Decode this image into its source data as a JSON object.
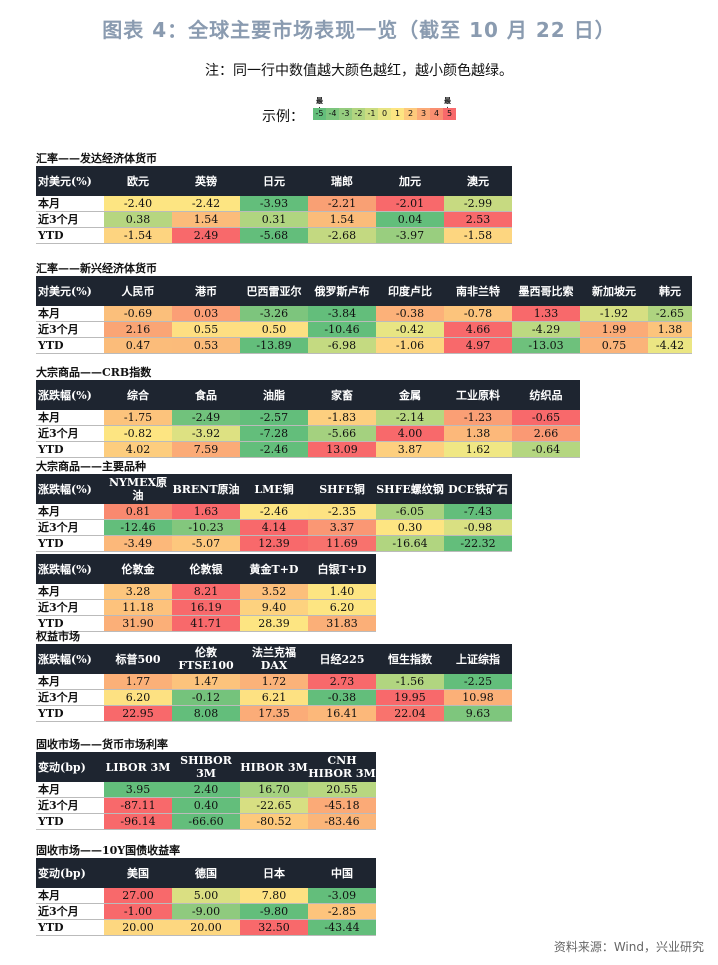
{
  "title": "图表 4：全球主要市场表现一览（截至 10 月 22 日）",
  "note": "注：同一行中数值越大颜色越红，越小颜色越绿。",
  "legend": {
    "label": "示例：",
    "min_tag": "最小",
    "max_tag": "最大",
    "scale": [
      "-5",
      "-4",
      "-3",
      "-2",
      "-1",
      "0",
      "1",
      "2",
      "3",
      "4",
      "5"
    ],
    "scale_colors": [
      "#63be7b",
      "#7cc57d",
      "#95cc7f",
      "#b1d580",
      "#cbdc81",
      "#e7e483",
      "#fde582",
      "#fdc97c",
      "#fbaa77",
      "#f98f71",
      "#f8696b"
    ]
  },
  "sections": [
    {
      "id": "fx-dm",
      "title": "汇率——发达经济体货币",
      "top": 152,
      "table_top": 166,
      "widths": [
        68,
        68,
        68,
        68,
        68,
        68,
        68
      ],
      "tables": [
        {
          "header": [
            "对美元(%)",
            "欧元",
            "英镑",
            "日元",
            "瑞郎",
            "加元",
            "澳元"
          ],
          "rows": [
            {
              "label": "本月",
              "values": [
                "-2.40",
                "-2.42",
                "-3.93",
                "-2.21",
                "-2.01",
                "-2.99"
              ],
              "colors": [
                "#fde582",
                "#fde582",
                "#63be7b",
                "#f9a074",
                "#f8696b",
                "#c7da81"
              ]
            },
            {
              "label": "近3个月",
              "values": [
                "0.38",
                "1.54",
                "0.31",
                "1.54",
                "0.04",
                "2.53"
              ],
              "colors": [
                "#b6d680",
                "#fbbc7a",
                "#b0d580",
                "#fbbc7a",
                "#63be7b",
                "#f8696b"
              ]
            },
            {
              "label": "YTD",
              "values": [
                "-1.54",
                "2.49",
                "-5.68",
                "-2.68",
                "-3.97",
                "-1.58"
              ],
              "colors": [
                "#fdd480",
                "#f8696b",
                "#63be7b",
                "#c3d981",
                "#99ce7f",
                "#fdd680"
              ]
            }
          ]
        }
      ]
    },
    {
      "id": "fx-em",
      "title": "汇率——新兴经济体货币",
      "top": 262,
      "table_top": 276,
      "widths": [
        68,
        68,
        68,
        68,
        68,
        68,
        68,
        68,
        68,
        44
      ],
      "tables": [
        {
          "header": [
            "对美元(%)",
            "人民币",
            "港币",
            "巴西雷亚尔",
            "俄罗斯卢布",
            "印度卢比",
            "南非兰特",
            "墨西哥比索",
            "新加坡元",
            "韩元"
          ],
          "rows": [
            {
              "label": "本月",
              "values": [
                "-0.69",
                "0.03",
                "-3.26",
                "-3.84",
                "-0.38",
                "-0.78",
                "1.33",
                "-1.92",
                "-2.65"
              ],
              "colors": [
                "#fbbf7b",
                "#fb9f76",
                "#7dc57d",
                "#63be7b",
                "#fcb179",
                "#fcc47c",
                "#f8696b",
                "#d6df82",
                "#aed480"
              ]
            },
            {
              "label": "近3个月",
              "values": [
                "2.16",
                "0.55",
                "0.50",
                "-10.46",
                "-0.42",
                "4.66",
                "-4.29",
                "1.99",
                "1.38"
              ],
              "colors": [
                "#faa575",
                "#fedf82",
                "#fde082",
                "#63be7b",
                "#e8e583",
                "#f8696b",
                "#bcd981",
                "#fbab77",
                "#fcc47c"
              ]
            },
            {
              "label": "YTD",
              "values": [
                "0.47",
                "0.53",
                "-13.89",
                "-6.98",
                "-1.06",
                "4.97",
                "-13.03",
                "0.75",
                "-4.42"
              ],
              "colors": [
                "#fbbc7a",
                "#fbbb7a",
                "#63be7b",
                "#c4da81",
                "#fdd580",
                "#f8696b",
                "#6ec17c",
                "#fbb379",
                "#ebe683"
              ]
            }
          ]
        }
      ]
    },
    {
      "id": "crb",
      "title": "大宗商品——CRB指数",
      "top": 366,
      "table_top": 380,
      "widths": [
        68,
        68,
        68,
        68,
        68,
        68,
        68,
        68
      ],
      "tables": [
        {
          "header": [
            "涨跌幅(%)",
            "综合",
            "食品",
            "油脂",
            "家畜",
            "金属",
            "工业原料",
            "纺织品"
          ],
          "rows": [
            {
              "label": "本月",
              "values": [
                "-1.75",
                "-2.49",
                "-2.57",
                "-1.83",
                "-2.14",
                "-1.23",
                "-0.65"
              ],
              "colors": [
                "#fcc37c",
                "#71c27c",
                "#63be7b",
                "#fdcf7f",
                "#b7d780",
                "#fa9f75",
                "#f8696b"
              ]
            },
            {
              "label": "近3个月",
              "values": [
                "-0.82",
                "-3.92",
                "-7.28",
                "-5.66",
                "4.00",
                "1.38",
                "2.66"
              ],
              "colors": [
                "#fde582",
                "#dde182",
                "#63be7b",
                "#a4d17f",
                "#f8696b",
                "#fcb87a",
                "#fa9974"
              ]
            },
            {
              "label": "YTD",
              "values": [
                "4.02",
                "7.59",
                "-2.46",
                "13.09",
                "3.87",
                "1.62",
                "-0.64"
              ],
              "colors": [
                "#fdcd7e",
                "#fbab77",
                "#63be7b",
                "#f8696b",
                "#fdcf7f",
                "#f0e784",
                "#b4d680"
              ]
            }
          ]
        }
      ]
    },
    {
      "id": "major",
      "title": "大宗商品——主要品种",
      "top": 460,
      "table_top": 474,
      "widths": [
        68,
        68,
        68,
        68,
        68,
        68,
        68
      ],
      "tables": [
        {
          "header": [
            "涨跌幅(%)",
            "NYMEX原油",
            "BRENT原油",
            "LME铜",
            "SHFE铜",
            "SHFE螺纹钢",
            "DCE铁矿石"
          ],
          "rows": [
            {
              "label": "本月",
              "values": [
                "0.81",
                "1.63",
                "-2.46",
                "-2.35",
                "-6.05",
                "-7.43"
              ],
              "colors": [
                "#f9896f",
                "#f8696b",
                "#fde582",
                "#fde382",
                "#a9d27f",
                "#63be7b"
              ]
            },
            {
              "label": "近3个月",
              "values": [
                "-12.46",
                "-10.23",
                "4.14",
                "3.37",
                "0.30",
                "-0.98"
              ],
              "colors": [
                "#63be7b",
                "#83c77d",
                "#f8696b",
                "#fa9774",
                "#fde582",
                "#d9e082"
              ]
            },
            {
              "label": "YTD",
              "values": [
                "-3.49",
                "-5.07",
                "12.39",
                "11.69",
                "-16.64",
                "-22.32"
              ],
              "colors": [
                "#fcb87a",
                "#fdc77d",
                "#f8696b",
                "#f8726d",
                "#b1d580",
                "#63be7b"
              ]
            }
          ]
        },
        {
          "header": [
            "涨跌幅(%)",
            "伦敦金",
            "伦敦银",
            "黄金T+D",
            "白银T+D"
          ],
          "rows": [
            {
              "label": "本月",
              "values": [
                "3.28",
                "8.21",
                "3.52",
                "1.40"
              ],
              "colors": [
                "#fdc67d",
                "#f8696b",
                "#fcbf7b",
                "#fde582"
              ]
            },
            {
              "label": "近3个月",
              "values": [
                "11.18",
                "16.19",
                "9.40",
                "6.20"
              ],
              "colors": [
                "#fdc27c",
                "#f8696b",
                "#fdd27f",
                "#fde582"
              ]
            },
            {
              "label": "YTD",
              "values": [
                "31.90",
                "41.71",
                "28.39",
                "31.83"
              ],
              "colors": [
                "#fbaf78",
                "#f8696b",
                "#fde582",
                "#fbaf78"
              ]
            }
          ]
        }
      ]
    },
    {
      "id": "equity",
      "title": "权益市场",
      "top": 630,
      "table_top": 644,
      "widths": [
        68,
        68,
        68,
        68,
        68,
        68,
        68
      ],
      "tables": [
        {
          "header": [
            "涨跌幅(%)",
            "标普500",
            "伦敦FTSE100",
            "法兰克福DAX",
            "日经225",
            "恒生指数",
            "上证综指"
          ],
          "rows": [
            {
              "label": "本月",
              "values": [
                "1.77",
                "1.47",
                "1.72",
                "2.73",
                "-1.56",
                "-2.25"
              ],
              "colors": [
                "#fbb078",
                "#fcc37c",
                "#fbb279",
                "#f8696b",
                "#b1d580",
                "#63be7b"
              ]
            },
            {
              "label": "近3个月",
              "values": [
                "6.20",
                "-0.12",
                "6.21",
                "-0.38",
                "19.95",
                "10.98"
              ],
              "colors": [
                "#fde182",
                "#75c37c",
                "#fde182",
                "#63be7b",
                "#f8696b",
                "#fbb078"
              ]
            },
            {
              "label": "YTD",
              "values": [
                "22.95",
                "8.08",
                "17.35",
                "16.41",
                "22.04",
                "9.63"
              ],
              "colors": [
                "#f8696b",
                "#63be7b",
                "#fbac78",
                "#fcb87a",
                "#f9736d",
                "#7ec67d"
              ]
            }
          ]
        }
      ]
    },
    {
      "id": "money",
      "title": "固收市场——货币市场利率",
      "top": 738,
      "table_top": 752,
      "widths": [
        68,
        68,
        68,
        68,
        68
      ],
      "tables": [
        {
          "header": [
            "变动(bp)",
            "LIBOR 3M",
            "SHIBOR 3M",
            "HIBOR 3M",
            "CNH HIBOR 3M"
          ],
          "rows": [
            {
              "label": "本月",
              "values": [
                "3.95",
                "2.40",
                "16.70",
                "20.55"
              ],
              "colors": [
                "#63be7b",
                "#63be7b",
                "#a5d27f",
                "#b8d780"
              ]
            },
            {
              "label": "近3个月",
              "values": [
                "-87.11",
                "0.40",
                "-22.65",
                "-45.18"
              ],
              "colors": [
                "#f8696b",
                "#63be7b",
                "#d7df82",
                "#fbaa77"
              ]
            },
            {
              "label": "YTD",
              "values": [
                "-96.14",
                "-66.60",
                "-80.52",
                "-83.46"
              ],
              "colors": [
                "#f8696b",
                "#63be7b",
                "#fdc97c",
                "#fbb579"
              ]
            }
          ]
        }
      ]
    },
    {
      "id": "bond",
      "title": "固收市场——10Y国债收益率",
      "top": 844,
      "table_top": 858,
      "widths": [
        68,
        68,
        68,
        68,
        68
      ],
      "tables": [
        {
          "header": [
            "变动(bp)",
            "美国",
            "德国",
            "日本",
            "中国"
          ],
          "rows": [
            {
              "label": "本月",
              "values": [
                "27.00",
                "5.00",
                "7.80",
                "-3.09"
              ],
              "colors": [
                "#f8696b",
                "#dadf82",
                "#fde182",
                "#63be7b"
              ]
            },
            {
              "label": "近3个月",
              "values": [
                "-1.00",
                "-9.00",
                "-9.80",
                "-2.85"
              ],
              "colors": [
                "#f8696b",
                "#8fca7e",
                "#63be7b",
                "#fdc47c"
              ]
            },
            {
              "label": "YTD",
              "values": [
                "20.00",
                "20.00",
                "32.50",
                "-43.44"
              ],
              "colors": [
                "#fdd780",
                "#fdd780",
                "#f8696b",
                "#63be7b"
              ]
            }
          ]
        }
      ]
    }
  ],
  "source": "资料来源：Wind，兴业研究"
}
